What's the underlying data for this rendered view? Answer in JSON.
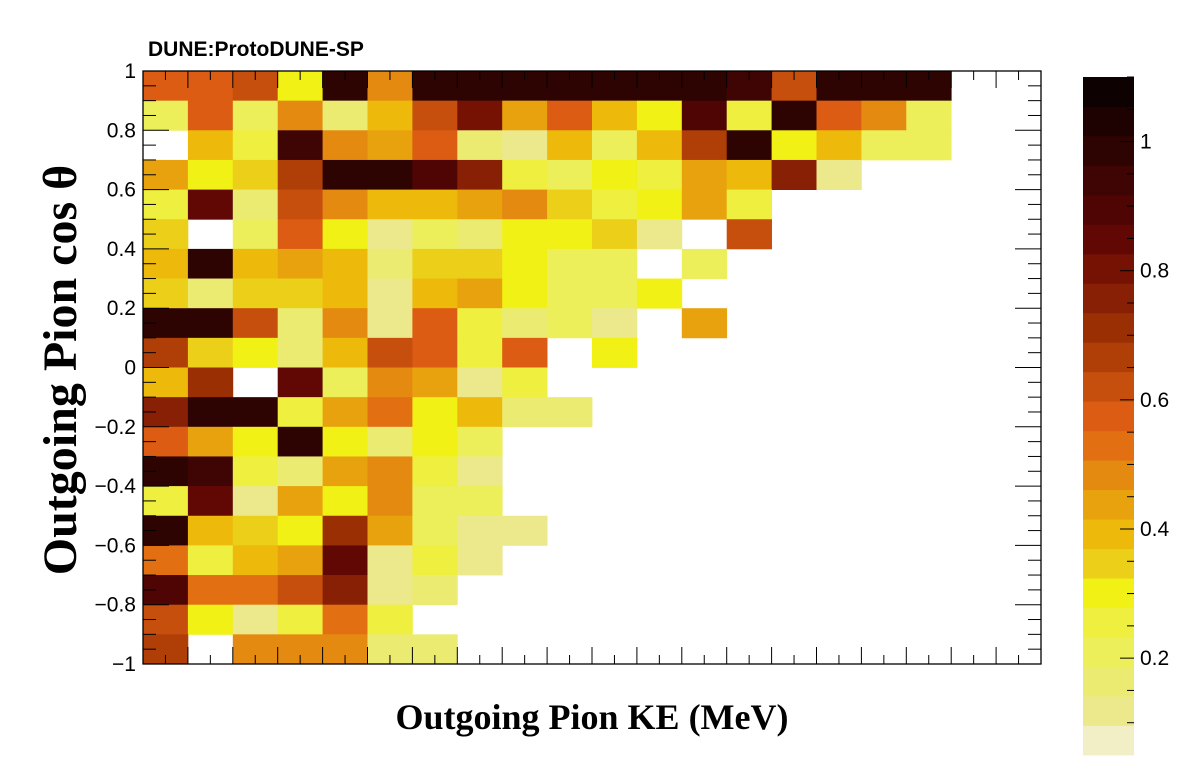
{
  "title": "DUNE:ProtoDUNE-SP",
  "chart_data": {
    "type": "heatmap",
    "title": "DUNE:ProtoDUNE-SP",
    "xlabel": "Outgoing Pion KE (MeV)",
    "ylabel": "Outgoing Pion cos  θ",
    "ylim": [
      -1,
      1
    ],
    "y_ticks": [
      "1",
      "0.8",
      "0.6",
      "0.4",
      "0.2",
      "0",
      "−0.2",
      "−0.4",
      "−0.6",
      "−0.8",
      "−1"
    ],
    "x_tick_labels_shown": false,
    "grid": false,
    "nx": 20,
    "ny": 20,
    "colorbar": {
      "range": [
        0.05,
        1.1
      ],
      "ticks": [
        "0.2",
        "0.4",
        "0.6",
        "0.8",
        "1"
      ],
      "palette": [
        "#f2eec6",
        "#ece98c",
        "#ebeb72",
        "#ecee5a",
        "#efef40",
        "#f1f115",
        "#eccf18",
        "#edba0c",
        "#e8a20d",
        "#e58a10",
        "#e27012",
        "#db5c12",
        "#c74f0d",
        "#b03f07",
        "#9a2f04",
        "#872004",
        "#751203",
        "#610804",
        "#4e0504",
        "#3e0504",
        "#2e0403",
        "#1e0202",
        "#0d0101"
      ],
      "palette_step": 0.05
    },
    "rows_top_to_bottom": [
      [
        0.6,
        0.6,
        0.65,
        0.3,
        1.05,
        0.5,
        1.05,
        1.05,
        1.05,
        1.05,
        1.05,
        1.05,
        1.05,
        1.0,
        0.65,
        1.05,
        1.05,
        1.05,
        null,
        null
      ],
      [
        0.2,
        0.6,
        0.2,
        0.5,
        0.15,
        0.4,
        0.65,
        0.85,
        0.45,
        0.6,
        0.4,
        0.3,
        0.95,
        0.25,
        1.05,
        0.6,
        0.5,
        0.2,
        null,
        null
      ],
      [
        null,
        0.4,
        0.25,
        1.0,
        0.5,
        0.45,
        0.6,
        0.15,
        0.1,
        0.4,
        0.2,
        0.4,
        0.7,
        1.05,
        0.3,
        0.4,
        0.2,
        0.2,
        null,
        null
      ],
      [
        0.45,
        0.3,
        0.35,
        0.7,
        1.05,
        1.05,
        0.95,
        0.8,
        0.25,
        0.2,
        0.3,
        0.25,
        0.45,
        0.4,
        0.8,
        0.1,
        null,
        null,
        null,
        null
      ],
      [
        0.25,
        0.9,
        0.15,
        0.65,
        0.5,
        0.4,
        0.4,
        0.45,
        0.5,
        0.35,
        0.25,
        0.3,
        0.45,
        0.25,
        null,
        null,
        null,
        null,
        null,
        null
      ],
      [
        0.35,
        null,
        0.2,
        0.6,
        0.3,
        0.1,
        0.2,
        0.15,
        0.3,
        0.3,
        0.35,
        0.1,
        null,
        0.65,
        null,
        null,
        null,
        null,
        null,
        null
      ],
      [
        0.4,
        1.05,
        0.4,
        0.45,
        0.4,
        0.15,
        0.35,
        0.35,
        0.3,
        0.2,
        0.2,
        null,
        0.2,
        null,
        null,
        null,
        null,
        null,
        null,
        null
      ],
      [
        0.35,
        0.15,
        0.35,
        0.35,
        0.4,
        0.1,
        0.4,
        0.45,
        0.3,
        0.2,
        0.2,
        0.3,
        null,
        null,
        null,
        null,
        null,
        null,
        null,
        null
      ],
      [
        1.05,
        1.05,
        0.65,
        0.15,
        0.5,
        0.1,
        0.6,
        0.25,
        0.15,
        0.2,
        0.1,
        null,
        0.45,
        null,
        null,
        null,
        null,
        null,
        null,
        null
      ],
      [
        0.7,
        0.35,
        0.3,
        0.15,
        0.4,
        0.65,
        0.6,
        0.25,
        0.6,
        null,
        0.3,
        null,
        null,
        null,
        null,
        null,
        null,
        null,
        null,
        null
      ],
      [
        0.4,
        0.75,
        null,
        0.9,
        0.2,
        0.5,
        0.45,
        0.1,
        0.25,
        null,
        null,
        null,
        null,
        null,
        null,
        null,
        null,
        null,
        null,
        null
      ],
      [
        0.8,
        1.05,
        1.05,
        0.25,
        0.45,
        0.55,
        0.3,
        0.4,
        0.15,
        0.15,
        null,
        null,
        null,
        null,
        null,
        null,
        null,
        null,
        null,
        null
      ],
      [
        0.6,
        0.45,
        0.3,
        1.05,
        0.3,
        0.15,
        0.3,
        0.2,
        null,
        null,
        null,
        null,
        null,
        null,
        null,
        null,
        null,
        null,
        null,
        null
      ],
      [
        1.05,
        1.0,
        0.25,
        0.15,
        0.45,
        0.5,
        0.25,
        0.1,
        null,
        null,
        null,
        null,
        null,
        null,
        null,
        null,
        null,
        null,
        null,
        null
      ],
      [
        0.25,
        0.9,
        0.1,
        0.45,
        0.3,
        0.5,
        0.2,
        0.2,
        null,
        null,
        null,
        null,
        null,
        null,
        null,
        null,
        null,
        null,
        null,
        null
      ],
      [
        1.05,
        0.4,
        0.35,
        0.3,
        0.75,
        0.45,
        0.2,
        0.1,
        0.1,
        null,
        null,
        null,
        null,
        null,
        null,
        null,
        null,
        null,
        null,
        null
      ],
      [
        0.55,
        0.25,
        0.4,
        0.45,
        0.9,
        0.1,
        0.25,
        0.1,
        null,
        null,
        null,
        null,
        null,
        null,
        null,
        null,
        null,
        null,
        null,
        null
      ],
      [
        0.95,
        0.55,
        0.55,
        0.65,
        0.8,
        0.1,
        0.15,
        null,
        null,
        null,
        null,
        null,
        null,
        null,
        null,
        null,
        null,
        null,
        null,
        null
      ],
      [
        0.65,
        0.3,
        0.1,
        0.25,
        0.55,
        0.25,
        null,
        null,
        null,
        null,
        null,
        null,
        null,
        null,
        null,
        null,
        null,
        null,
        null,
        null
      ],
      [
        0.7,
        null,
        0.5,
        0.5,
        0.5,
        0.15,
        0.15,
        null,
        null,
        null,
        null,
        null,
        null,
        null,
        null,
        null,
        null,
        null,
        null,
        null
      ]
    ]
  }
}
